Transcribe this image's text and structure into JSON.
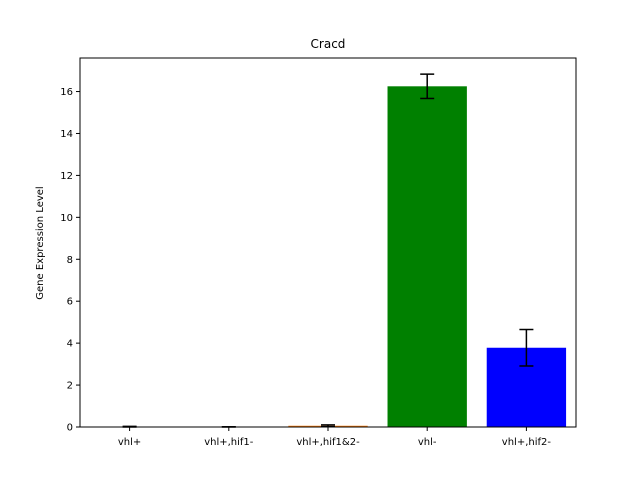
{
  "chart_data": {
    "type": "bar",
    "title": "Cracd",
    "xlabel": "",
    "ylabel": "Gene Expression Level",
    "categories": [
      "vhl+",
      "vhl+,hif1-",
      "vhl+,hif1&2-",
      "vhl-",
      "vhl+,hif2-"
    ],
    "values": [
      0.0,
      0.0,
      0.06,
      16.25,
      3.78
    ],
    "errors": [
      0.03,
      0.01,
      0.04,
      0.58,
      0.87
    ],
    "colors": [
      "#1f77b4",
      "#9467bd",
      "#ff7f0e",
      "#008000",
      "#0000ff"
    ],
    "ylim": [
      0,
      17.6
    ],
    "yticks": [
      "0",
      "2",
      "4",
      "6",
      "8",
      "10",
      "12",
      "14",
      "16"
    ],
    "ytick_values": [
      0,
      2,
      4,
      6,
      8,
      10,
      12,
      14,
      16
    ],
    "grid": false,
    "legend": "none"
  }
}
